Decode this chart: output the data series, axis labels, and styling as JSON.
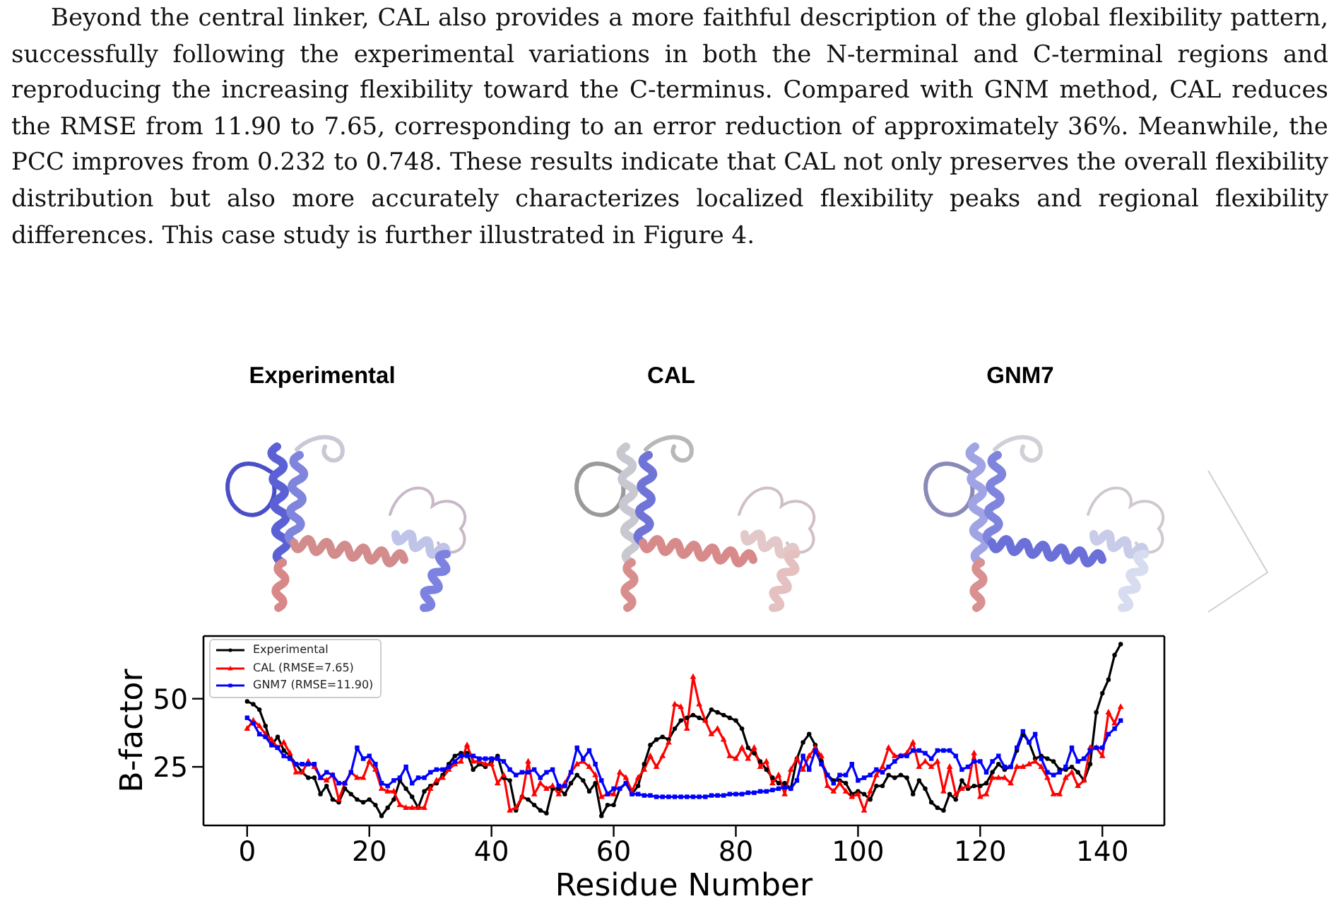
{
  "chart_data": {
    "type": "line",
    "annotations": [
      "Beyond the central linker, CAL also provides a more faithful description of the global flexibility pattern, successfully following the experimental variations in both the N-terminal and C-terminal regions and reproducing the increasing flexibility toward the C-terminus. Compared with GNM method, CAL reduces the RMSE from 11.90 to 7.65, corresponding to an error reduction of approximately 36%. Meanwhile, the PCC improves from 0.232 to 0.748. These results indicate that CAL not only preserves the overall flexibility distribution but also more accurately characterizes localized flexibility peaks and regional flexibility differences. This case study is further illustrated in Figure 4.",
      "Experimental",
      "CAL",
      "GNM7"
    ],
    "xlabel": "Residue Number",
    "ylabel": "B-factor",
    "x": [
      0,
      1,
      2,
      3,
      4,
      5,
      6,
      7,
      8,
      9,
      10,
      11,
      12,
      13,
      14,
      15,
      16,
      17,
      18,
      19,
      20,
      21,
      22,
      23,
      24,
      25,
      26,
      27,
      28,
      29,
      30,
      31,
      32,
      33,
      34,
      35,
      36,
      37,
      38,
      39,
      40,
      41,
      42,
      43,
      44,
      45,
      46,
      47,
      48,
      49,
      50,
      51,
      52,
      53,
      54,
      55,
      56,
      57,
      58,
      59,
      60,
      61,
      62,
      63,
      64,
      65,
      66,
      67,
      68,
      69,
      70,
      71,
      72,
      73,
      74,
      75,
      76,
      77,
      78,
      79,
      80,
      81,
      82,
      83,
      84,
      85,
      86,
      87,
      88,
      89,
      90,
      91,
      92,
      93,
      94,
      95,
      96,
      97,
      98,
      99,
      100,
      101,
      102,
      103,
      104,
      105,
      106,
      107,
      108,
      109,
      110,
      111,
      112,
      113,
      114,
      115,
      116,
      117,
      118,
      119,
      120,
      121,
      122,
      123,
      124,
      125,
      126,
      127,
      128,
      129,
      130,
      131,
      132,
      133,
      134,
      135,
      136,
      137,
      138,
      139,
      140,
      141,
      142,
      143
    ],
    "series": [
      {
        "name": "Experimental",
        "color": "#000000",
        "marker": "circle",
        "values": [
          49,
          48,
          46,
          40,
          33,
          36,
          31,
          29,
          26,
          23,
          21,
          21,
          15,
          18,
          13,
          12,
          17,
          15,
          13,
          12,
          13,
          11,
          7,
          10,
          13,
          20,
          17,
          14,
          10,
          16,
          18,
          19,
          22,
          26,
          29,
          30,
          30,
          24,
          26,
          25,
          27,
          29,
          21,
          20,
          9,
          14,
          13,
          11,
          9,
          8,
          17,
          17,
          15,
          19,
          22,
          20,
          16,
          19,
          7,
          11,
          11,
          17,
          19,
          15,
          18,
          26,
          33,
          35,
          36,
          35,
          39,
          42,
          43,
          44,
          43,
          42,
          46,
          45,
          44,
          43,
          42,
          39,
          32,
          30,
          27,
          24,
          21,
          19,
          19,
          17,
          28,
          34,
          37,
          33,
          27,
          22,
          20,
          20,
          19,
          15,
          16,
          15,
          13,
          18,
          18,
          22,
          21,
          22,
          21,
          15,
          20,
          17,
          12,
          10,
          9,
          15,
          13,
          20,
          17,
          18,
          18,
          19,
          23,
          26,
          24,
          25,
          31,
          37,
          34,
          28,
          29,
          28,
          27,
          24,
          24,
          25,
          23,
          20,
          26,
          45,
          52,
          57,
          66,
          70
        ]
      },
      {
        "name": "CAL (RMSE=7.65)",
        "color": "#ff0000",
        "marker": "triangle",
        "values": [
          39,
          42,
          40,
          37,
          35,
          32,
          34,
          30,
          23,
          23,
          27,
          25,
          21,
          20,
          22,
          13,
          19,
          23,
          21,
          21,
          27,
          24,
          17,
          16,
          16,
          11,
          10,
          10,
          10,
          10,
          17,
          20,
          21,
          24,
          26,
          27,
          33,
          27,
          27,
          26,
          26,
          19,
          22,
          9,
          10,
          14,
          27,
          15,
          19,
          17,
          18,
          15,
          19,
          23,
          26,
          27,
          25,
          22,
          14,
          15,
          15,
          23,
          21,
          16,
          21,
          24,
          29,
          25,
          29,
          34,
          48,
          47,
          39,
          58,
          48,
          42,
          37,
          39,
          35,
          29,
          28,
          32,
          28,
          32,
          25,
          27,
          19,
          22,
          15,
          24,
          28,
          24,
          29,
          32,
          29,
          18,
          16,
          19,
          16,
          14,
          15,
          9,
          16,
          22,
          25,
          32,
          29,
          29,
          30,
          34,
          25,
          27,
          25,
          27,
          16,
          25,
          15,
          17,
          18,
          30,
          14,
          15,
          21,
          21,
          21,
          19,
          25,
          25,
          26,
          27,
          25,
          21,
          15,
          15,
          21,
          23,
          18,
          20,
          32,
          32,
          29,
          45,
          41,
          47
        ]
      },
      {
        "name": "GNM7 (RMSE=11.90)",
        "color": "#0000ff",
        "marker": "square",
        "values": [
          43,
          41,
          37,
          36,
          33,
          32,
          29,
          28,
          26,
          26,
          26,
          26,
          21,
          23,
          22,
          19,
          19,
          23,
          32,
          28,
          29,
          26,
          19,
          18,
          20,
          21,
          25,
          19,
          21,
          21,
          23,
          24,
          24,
          25,
          27,
          29,
          29,
          29,
          28,
          28,
          28,
          28,
          27,
          24,
          22,
          23,
          23,
          24,
          21,
          23,
          24,
          18,
          18,
          23,
          32,
          28,
          31,
          26,
          20,
          15,
          17,
          17,
          19,
          15,
          15,
          14.5,
          14.5,
          14,
          14,
          14,
          14,
          14,
          14,
          14,
          14,
          14,
          14.5,
          14.5,
          14.5,
          15,
          15,
          15,
          15.5,
          15.5,
          16,
          16,
          16.5,
          17,
          17.5,
          17,
          20,
          29,
          24,
          31,
          26,
          22,
          19,
          22,
          22,
          26,
          20,
          21,
          22,
          24,
          23,
          25,
          27,
          29,
          29,
          31,
          31,
          30,
          28,
          31,
          31,
          31,
          29,
          24,
          25,
          27,
          27,
          23,
          27,
          29,
          25,
          25,
          32,
          38,
          34,
          37,
          28,
          23,
          22,
          23,
          25,
          32,
          27,
          28,
          31,
          32,
          32,
          37,
          39,
          42
        ]
      }
    ],
    "xlim": [
      -7.15,
      150.15
    ],
    "xticks": [
      0,
      20,
      40,
      60,
      80,
      100,
      120,
      140
    ],
    "ylim": [
      3.5,
      73
    ],
    "yticks": [
      25,
      50
    ],
    "legend": "top left",
    "line_style": "solid"
  }
}
